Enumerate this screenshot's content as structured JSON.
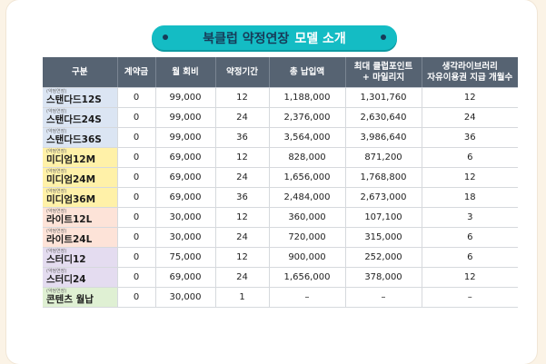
{
  "title": {
    "main": "북클럽 약정연장",
    "accent": "모델 소개"
  },
  "table": {
    "headers": [
      "구분",
      "계약금",
      "월 회비",
      "약정기간",
      "총 납입액",
      "최대 클럽포인트\n+ 마일리지",
      "생각라이브러리\n자유이용권 지급 개월수"
    ],
    "rows": [
      {
        "tag": "(약정연장)",
        "name": "스탠다드12S",
        "group": "standard",
        "values": [
          "0",
          "99,000",
          "12",
          "1,188,000",
          "1,301,760",
          "12"
        ]
      },
      {
        "tag": "(약정연장)",
        "name": "스탠다드24S",
        "group": "standard",
        "values": [
          "0",
          "99,000",
          "24",
          "2,376,000",
          "2,630,640",
          "24"
        ]
      },
      {
        "tag": "(약정연장)",
        "name": "스탠다드36S",
        "group": "standard",
        "values": [
          "0",
          "99,000",
          "36",
          "3,564,000",
          "3,986,640",
          "36"
        ]
      },
      {
        "tag": "(약정연장)",
        "name": "미디엄12M",
        "group": "medium",
        "values": [
          "0",
          "69,000",
          "12",
          "828,000",
          "871,200",
          "6"
        ]
      },
      {
        "tag": "(약정연장)",
        "name": "미디엄24M",
        "group": "medium",
        "values": [
          "0",
          "69,000",
          "24",
          "1,656,000",
          "1,768,800",
          "12"
        ]
      },
      {
        "tag": "(약정연장)",
        "name": "미디엄36M",
        "group": "medium",
        "values": [
          "0",
          "69,000",
          "36",
          "2,484,000",
          "2,673,000",
          "18"
        ]
      },
      {
        "tag": "(약정연장)",
        "name": "라이트12L",
        "group": "light",
        "values": [
          "0",
          "30,000",
          "12",
          "360,000",
          "107,100",
          "3"
        ]
      },
      {
        "tag": "(약정연장)",
        "name": "라이트24L",
        "group": "light",
        "values": [
          "0",
          "30,000",
          "24",
          "720,000",
          "315,000",
          "6"
        ]
      },
      {
        "tag": "(약정연장)",
        "name": "스터디12",
        "group": "study",
        "values": [
          "0",
          "75,000",
          "12",
          "900,000",
          "252,000",
          "6"
        ]
      },
      {
        "tag": "(약정연장)",
        "name": "스터디24",
        "group": "study",
        "values": [
          "0",
          "69,000",
          "24",
          "1,656,000",
          "378,000",
          "12"
        ]
      },
      {
        "tag": "(약정연장)",
        "name": "콘텐츠 월납",
        "group": "content",
        "values": [
          "0",
          "30,000",
          "1",
          "–",
          "–",
          "–"
        ]
      }
    ]
  }
}
